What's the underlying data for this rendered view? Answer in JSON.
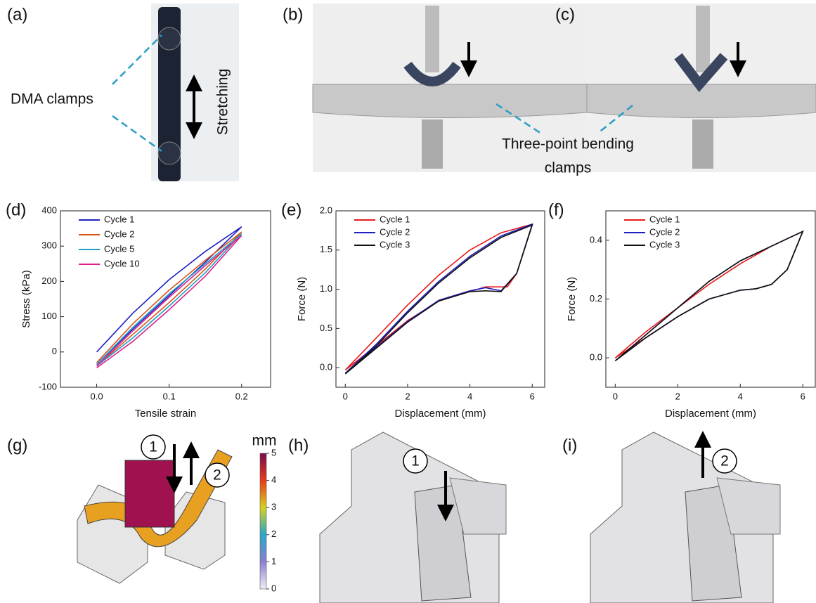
{
  "panel_labels": [
    "(a)",
    "(b)",
    "(c)",
    "(d)",
    "(e)",
    "(f)",
    "(g)",
    "(h)",
    "(i)"
  ],
  "annotations": {
    "dma": "DMA clamps",
    "stretching": "Stretching",
    "bending": [
      "Three-point bending",
      "clamps"
    ]
  },
  "steps": [
    "1",
    "2",
    "1",
    "2"
  ],
  "colorbar": {
    "label": "mm",
    "lim": [
      0,
      5
    ],
    "ticks": [
      0,
      1,
      2,
      3,
      4,
      5
    ]
  },
  "chart_data": [
    {
      "type": "line",
      "xlabel": "Tensile strain",
      "ylabel": "Stress (kPa)",
      "legend": "upper left",
      "xlim": [
        -0.05,
        0.24
      ],
      "xticks": [
        {
          "value": 0,
          "label": "0.0"
        },
        {
          "value": 0.1,
          "label": "0.1"
        },
        {
          "value": 0.2,
          "label": "0.2"
        }
      ],
      "ylim": [
        -100,
        400
      ],
      "yticks": [
        -100,
        0,
        100,
        200,
        300,
        400
      ],
      "series": [
        {
          "name": "Cycle 1",
          "color": "#1f1fbf",
          "x": [
            0,
            0.05,
            0.1,
            0.15,
            0.2,
            0.15,
            0.1,
            0.05,
            0
          ],
          "values": [
            0,
            110,
            205,
            285,
            355,
            255,
            160,
            65,
            -35
          ]
        },
        {
          "name": "Cycle 2",
          "color": "#d9541a",
          "x": [
            0,
            0.05,
            0.1,
            0.15,
            0.2,
            0.15,
            0.1,
            0.05,
            0
          ],
          "values": [
            -30,
            80,
            175,
            260,
            340,
            235,
            140,
            50,
            -40
          ]
        },
        {
          "name": "Cycle 5",
          "color": "#1fa0c8",
          "x": [
            0,
            0.05,
            0.1,
            0.15,
            0.2,
            0.15,
            0.1,
            0.05,
            0
          ],
          "values": [
            -35,
            70,
            165,
            250,
            335,
            225,
            130,
            40,
            -40
          ]
        },
        {
          "name": "Cycle 10",
          "color": "#e0208a",
          "x": [
            0,
            0.05,
            0.1,
            0.15,
            0.2,
            0.15,
            0.1,
            0.05,
            0
          ],
          "values": [
            -40,
            60,
            155,
            245,
            330,
            215,
            120,
            30,
            -45
          ]
        }
      ]
    },
    {
      "type": "line",
      "xlabel": "Displacement (mm)",
      "ylabel": "Force (N)",
      "legend": "upper left",
      "xlim": [
        -0.3,
        6.4
      ],
      "xticks": [
        0,
        2,
        4,
        6
      ],
      "ylim": [
        -0.25,
        2.0
      ],
      "yticks": [
        {
          "value": 0,
          "label": "0.0"
        },
        0.5,
        {
          "value": 1,
          "label": "1.0"
        },
        1.5,
        {
          "value": 2,
          "label": "2.0"
        }
      ],
      "series": [
        {
          "name": "Cycle 1",
          "color": "#e8191a",
          "x": [
            0,
            1,
            2,
            3,
            4,
            5,
            6,
            5.5,
            5.2,
            4.5,
            4,
            3,
            2,
            1,
            0
          ],
          "values": [
            -0.03,
            0.38,
            0.8,
            1.18,
            1.5,
            1.72,
            1.83,
            1.2,
            1.03,
            1.03,
            0.97,
            0.85,
            0.6,
            0.28,
            -0.03
          ]
        },
        {
          "name": "Cycle 2",
          "color": "#1f1fbf",
          "x": [
            0,
            1,
            2,
            3,
            4,
            5,
            6,
            5.5,
            5,
            4.5,
            4,
            3,
            2,
            1,
            0
          ],
          "values": [
            -0.07,
            0.3,
            0.72,
            1.1,
            1.42,
            1.68,
            1.83,
            1.2,
            0.98,
            1.02,
            0.98,
            0.86,
            0.59,
            0.26,
            -0.07
          ]
        },
        {
          "name": "Cycle 3",
          "color": "#111111",
          "x": [
            0,
            1,
            2,
            3,
            4,
            5,
            6,
            5.5,
            5,
            4.5,
            4,
            3,
            2,
            1,
            0
          ],
          "values": [
            -0.08,
            0.28,
            0.7,
            1.08,
            1.4,
            1.66,
            1.82,
            1.2,
            0.97,
            0.98,
            0.97,
            0.85,
            0.58,
            0.25,
            -0.08
          ]
        }
      ]
    },
    {
      "type": "line",
      "xlabel": "Displacement (mm)",
      "ylabel": "Force (N)",
      "legend": "upper left",
      "xlim": [
        -0.3,
        6.4
      ],
      "xticks": [
        0,
        2,
        4,
        6
      ],
      "ylim": [
        -0.1,
        0.5
      ],
      "yticks": [
        {
          "value": 0,
          "label": "0.0"
        },
        0.2,
        0.4
      ],
      "series": [
        {
          "name": "Cycle 1",
          "color": "#e8191a",
          "x": [
            0,
            1,
            2,
            3,
            4,
            5,
            6,
            5.5,
            5,
            4.5,
            4,
            3,
            2,
            1,
            0
          ],
          "values": [
            0,
            0.09,
            0.17,
            0.25,
            0.32,
            0.38,
            0.43,
            0.3,
            0.25,
            0.235,
            0.23,
            0.2,
            0.14,
            0.07,
            0
          ]
        },
        {
          "name": "Cycle 2",
          "color": "#1f1fbf",
          "x": [
            0,
            1,
            2,
            3,
            4,
            5,
            6,
            5.5,
            5,
            4.5,
            4,
            3,
            2,
            1,
            0
          ],
          "values": [
            -0.01,
            0.08,
            0.17,
            0.26,
            0.33,
            0.38,
            0.43,
            0.3,
            0.25,
            0.235,
            0.23,
            0.2,
            0.14,
            0.07,
            -0.01
          ]
        },
        {
          "name": "Cycle 3",
          "color": "#111111",
          "x": [
            0,
            1,
            2,
            3,
            4,
            5,
            6,
            5.5,
            5,
            4.5,
            4,
            3,
            2,
            1,
            0
          ],
          "values": [
            -0.01,
            0.08,
            0.17,
            0.26,
            0.33,
            0.38,
            0.43,
            0.3,
            0.25,
            0.235,
            0.23,
            0.2,
            0.14,
            0.07,
            -0.01
          ]
        }
      ]
    }
  ]
}
